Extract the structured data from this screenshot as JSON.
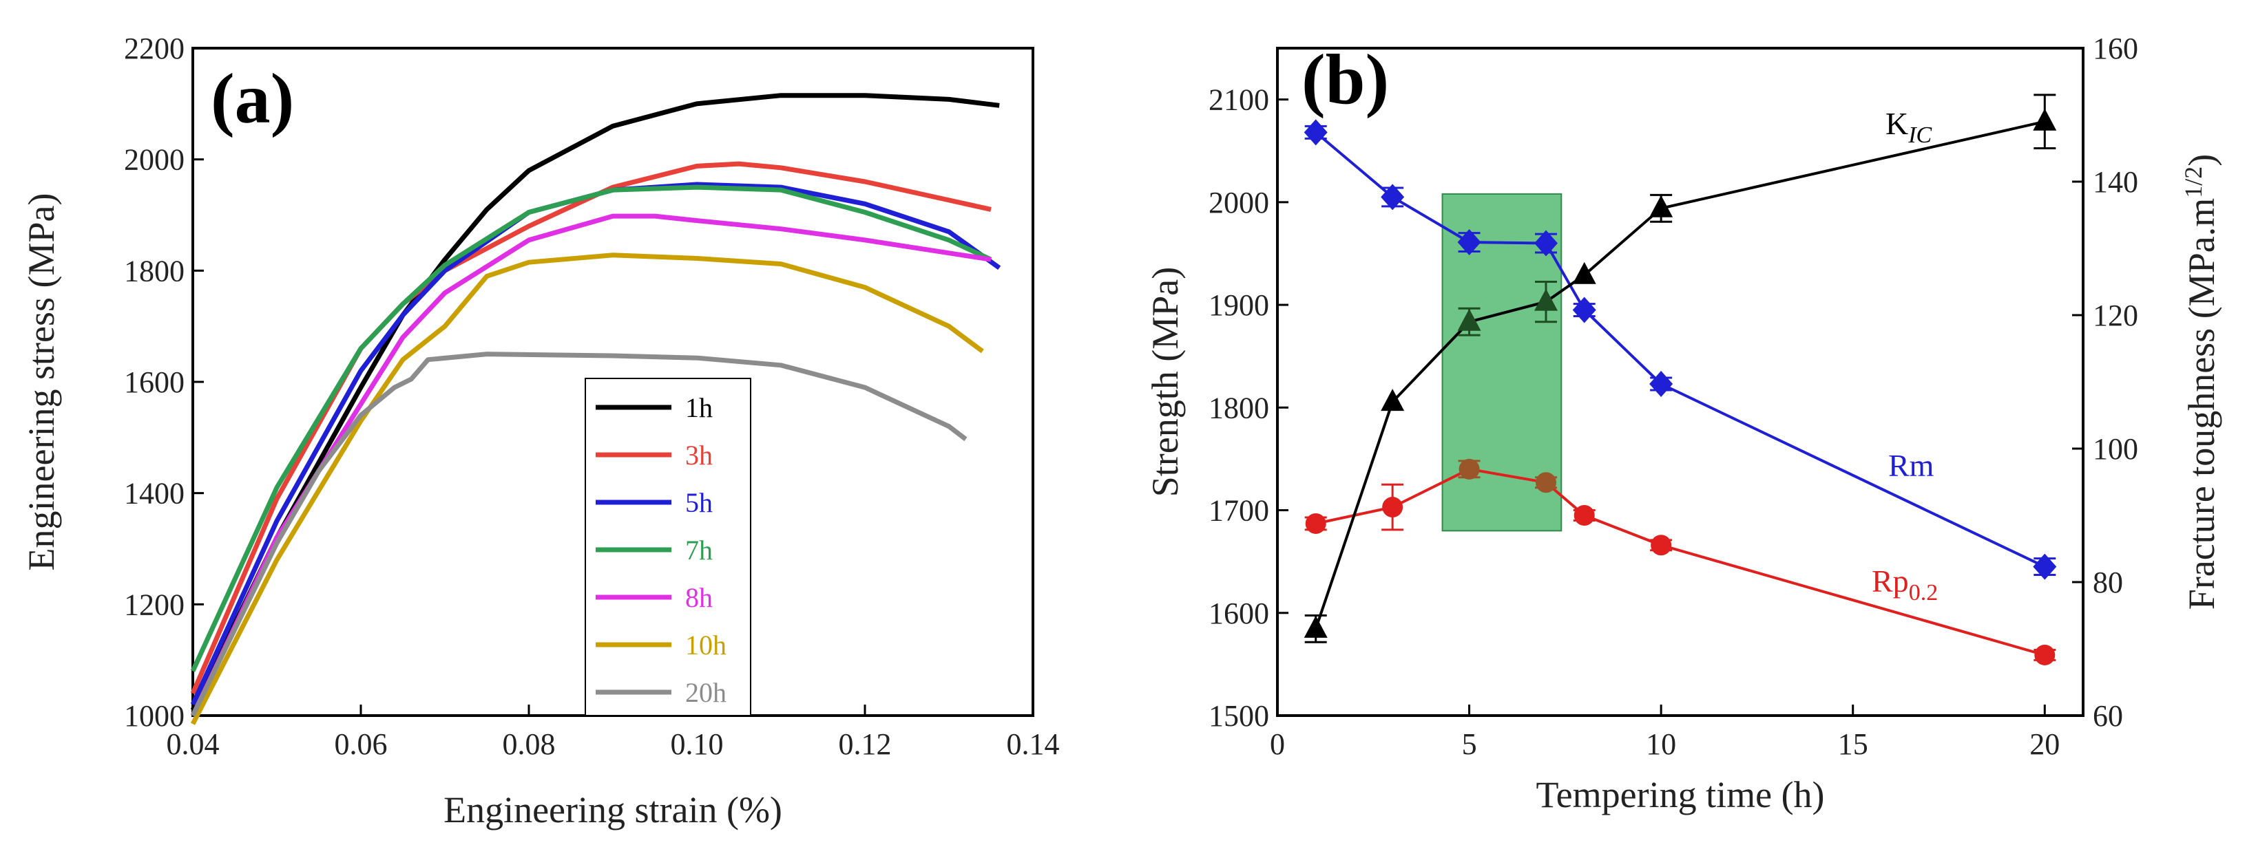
{
  "chart_data": [
    {
      "type": "line",
      "panel": "(a)",
      "xlabel": "Engineering strain (%)",
      "ylabel": "Engineering stress (MPa)",
      "xlim": [
        0.04,
        0.14
      ],
      "ylim": [
        1000,
        2200
      ],
      "xticks": [
        "0.04",
        "0.06",
        "0.08",
        "0.10",
        "0.12",
        "0.14"
      ],
      "yticks": [
        "1000",
        "1200",
        "1400",
        "1600",
        "1800",
        "2000",
        "2200"
      ],
      "legend_position": "bottom-center",
      "series": [
        {
          "name": "1h",
          "color": "#000000",
          "points": [
            [
              0.04,
              1010
            ],
            [
              0.05,
              1320
            ],
            [
              0.06,
              1590
            ],
            [
              0.065,
              1720
            ],
            [
              0.07,
              1820
            ],
            [
              0.075,
              1910
            ],
            [
              0.08,
              1980
            ],
            [
              0.09,
              2060
            ],
            [
              0.1,
              2100
            ],
            [
              0.11,
              2115
            ],
            [
              0.12,
              2115
            ],
            [
              0.13,
              2108
            ],
            [
              0.136,
              2097
            ]
          ]
        },
        {
          "name": "3h",
          "color": "#e8413a",
          "points": [
            [
              0.04,
              1040
            ],
            [
              0.05,
              1390
            ],
            [
              0.06,
              1660
            ],
            [
              0.065,
              1740
            ],
            [
              0.07,
              1800
            ],
            [
              0.08,
              1880
            ],
            [
              0.09,
              1950
            ],
            [
              0.1,
              1988
            ],
            [
              0.105,
              1992
            ],
            [
              0.11,
              1985
            ],
            [
              0.12,
              1960
            ],
            [
              0.135,
              1910
            ]
          ]
        },
        {
          "name": "5h",
          "color": "#1f1fd6",
          "points": [
            [
              0.04,
              1020
            ],
            [
              0.05,
              1350
            ],
            [
              0.06,
              1620
            ],
            [
              0.065,
              1720
            ],
            [
              0.07,
              1800
            ],
            [
              0.08,
              1905
            ],
            [
              0.09,
              1945
            ],
            [
              0.1,
              1955
            ],
            [
              0.11,
              1950
            ],
            [
              0.12,
              1920
            ],
            [
              0.13,
              1870
            ],
            [
              0.136,
              1805
            ]
          ]
        },
        {
          "name": "7h",
          "color": "#2e9e52",
          "points": [
            [
              0.04,
              1080
            ],
            [
              0.05,
              1410
            ],
            [
              0.06,
              1660
            ],
            [
              0.065,
              1740
            ],
            [
              0.07,
              1810
            ],
            [
              0.08,
              1905
            ],
            [
              0.09,
              1945
            ],
            [
              0.1,
              1950
            ],
            [
              0.11,
              1945
            ],
            [
              0.12,
              1905
            ],
            [
              0.13,
              1855
            ],
            [
              0.135,
              1820
            ]
          ]
        },
        {
          "name": "8h",
          "color": "#e030e6",
          "points": [
            [
              0.04,
              1000
            ],
            [
              0.05,
              1320
            ],
            [
              0.06,
              1560
            ],
            [
              0.065,
              1680
            ],
            [
              0.07,
              1760
            ],
            [
              0.08,
              1855
            ],
            [
              0.09,
              1898
            ],
            [
              0.095,
              1898
            ],
            [
              0.1,
              1890
            ],
            [
              0.11,
              1875
            ],
            [
              0.12,
              1855
            ],
            [
              0.135,
              1820
            ]
          ]
        },
        {
          "name": "10h",
          "color": "#c9a000",
          "points": [
            [
              0.04,
              970
            ],
            [
              0.05,
              1280
            ],
            [
              0.06,
              1530
            ],
            [
              0.065,
              1640
            ],
            [
              0.07,
              1700
            ],
            [
              0.075,
              1790
            ],
            [
              0.08,
              1815
            ],
            [
              0.09,
              1828
            ],
            [
              0.1,
              1822
            ],
            [
              0.11,
              1812
            ],
            [
              0.12,
              1770
            ],
            [
              0.13,
              1700
            ],
            [
              0.134,
              1655
            ]
          ]
        },
        {
          "name": "20h",
          "color": "#8c8c8c",
          "points": [
            [
              0.04,
              1000
            ],
            [
              0.05,
              1310
            ],
            [
              0.055,
              1440
            ],
            [
              0.06,
              1540
            ],
            [
              0.064,
              1590
            ],
            [
              0.066,
              1605
            ],
            [
              0.068,
              1640
            ],
            [
              0.075,
              1650
            ],
            [
              0.09,
              1647
            ],
            [
              0.1,
              1643
            ],
            [
              0.11,
              1630
            ],
            [
              0.12,
              1590
            ],
            [
              0.13,
              1520
            ],
            [
              0.132,
              1497
            ]
          ]
        }
      ]
    },
    {
      "type": "line",
      "panel": "(b)",
      "xlabel": "Tempering time (h)",
      "ylabel": "Strength (MPa)",
      "ylabel_right": "Fracture toughness (MPa.m",
      "ylabel_right_sup": "1/2",
      "ylabel_right_end": ")",
      "xlim": [
        0,
        21
      ],
      "ylim": [
        1500,
        2150
      ],
      "ylim_right": [
        60,
        160
      ],
      "xticks": [
        "0",
        "5",
        "10",
        "15",
        "20"
      ],
      "yticks": [
        "1500",
        "1600",
        "1700",
        "1800",
        "1900",
        "2000",
        "2100"
      ],
      "yticks_right": [
        "60",
        "80",
        "100",
        "120",
        "140",
        "160"
      ],
      "highlight_region": {
        "x_from": 4.3,
        "x_to": 7.4,
        "y_from": 1680,
        "y_to": 2008,
        "color": "#3fb060"
      },
      "series": [
        {
          "name": "Rm",
          "label": "Rm",
          "axis": "left",
          "marker": "diamond",
          "color": "#1f1fd6",
          "x": [
            1,
            3,
            5,
            7,
            8,
            10,
            20
          ],
          "y": [
            2068,
            2005,
            1961,
            1960,
            1895,
            1823,
            1645
          ],
          "err": [
            6,
            9,
            9,
            9,
            6,
            6,
            8
          ]
        },
        {
          "name": "Rp0.2",
          "label_main": "Rp",
          "label_sub": "0.2",
          "axis": "left",
          "marker": "circle",
          "color": "#e0201e",
          "x": [
            1,
            3,
            5,
            7,
            8,
            10,
            20
          ],
          "y": [
            1687,
            1703,
            1740,
            1727,
            1695,
            1666,
            1559
          ],
          "err": [
            6,
            22,
            8,
            5,
            5,
            5,
            5
          ]
        },
        {
          "name": "KIC",
          "label_main": "K",
          "label_sub": "IC",
          "axis": "right",
          "marker": "triangle",
          "color": "#000000",
          "x": [
            1,
            3,
            5,
            7,
            8,
            10,
            20
          ],
          "y": [
            73,
            107,
            119,
            122,
            126,
            136,
            149
          ],
          "err": [
            2,
            0,
            2,
            3,
            0,
            2,
            4
          ]
        }
      ]
    }
  ]
}
